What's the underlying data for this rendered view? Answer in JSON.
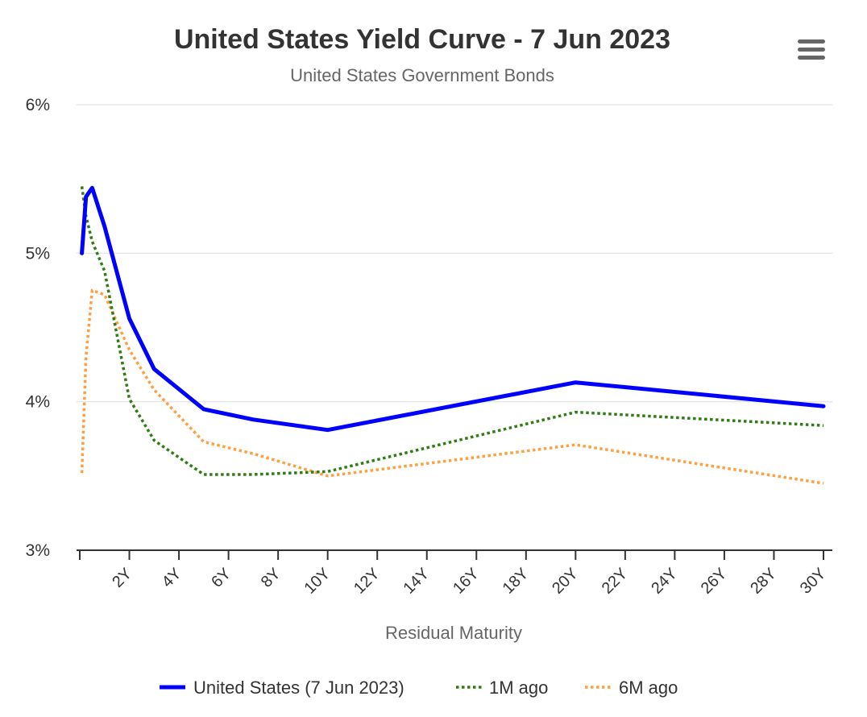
{
  "chart_data": {
    "type": "line",
    "title": "United States Yield Curve - 7 Jun 2023",
    "subtitle": "United States Government Bonds",
    "xlabel": "Residual Maturity",
    "ylabel": "",
    "xlim": [
      0,
      30
    ],
    "ylim": [
      3,
      6
    ],
    "y_ticks": [
      3,
      4,
      5,
      6
    ],
    "y_tick_labels": [
      "3%",
      "4%",
      "5%",
      "6%"
    ],
    "x_ticks": [
      2,
      4,
      6,
      8,
      10,
      12,
      14,
      16,
      18,
      20,
      22,
      24,
      26,
      28,
      30
    ],
    "x_tick_labels": [
      "2Y",
      "4Y",
      "6Y",
      "8Y",
      "10Y",
      "12Y",
      "14Y",
      "16Y",
      "18Y",
      "20Y",
      "22Y",
      "24Y",
      "26Y",
      "28Y",
      "30Y"
    ],
    "grid": true,
    "legend_position": "bottom",
    "series": [
      {
        "name": "United States (7 Jun 2023)",
        "color": "#0000ff",
        "style": "solid",
        "x": [
          0.083,
          0.25,
          0.5,
          1,
          2,
          3,
          5,
          7,
          10,
          20,
          30
        ],
        "y": [
          5.0,
          5.38,
          5.44,
          5.18,
          4.56,
          4.22,
          3.95,
          3.88,
          3.81,
          4.13,
          3.97
        ]
      },
      {
        "name": "1M ago",
        "color": "#2e7d14",
        "style": "dotted",
        "x": [
          0.083,
          0.25,
          0.5,
          1,
          2,
          3,
          5,
          7,
          10,
          20,
          30
        ],
        "y": [
          5.45,
          5.25,
          5.08,
          4.88,
          4.02,
          3.74,
          3.51,
          3.51,
          3.53,
          3.93,
          3.84
        ]
      },
      {
        "name": "6M ago",
        "color": "#ff9f40",
        "style": "dotted",
        "x": [
          0.083,
          0.25,
          0.5,
          1,
          2,
          3,
          5,
          7,
          10,
          20,
          30
        ],
        "y": [
          3.52,
          4.3,
          4.75,
          4.72,
          4.35,
          4.08,
          3.73,
          3.65,
          3.5,
          3.71,
          3.45
        ]
      }
    ]
  },
  "menu": {
    "icon": "hamburger-menu-icon"
  }
}
